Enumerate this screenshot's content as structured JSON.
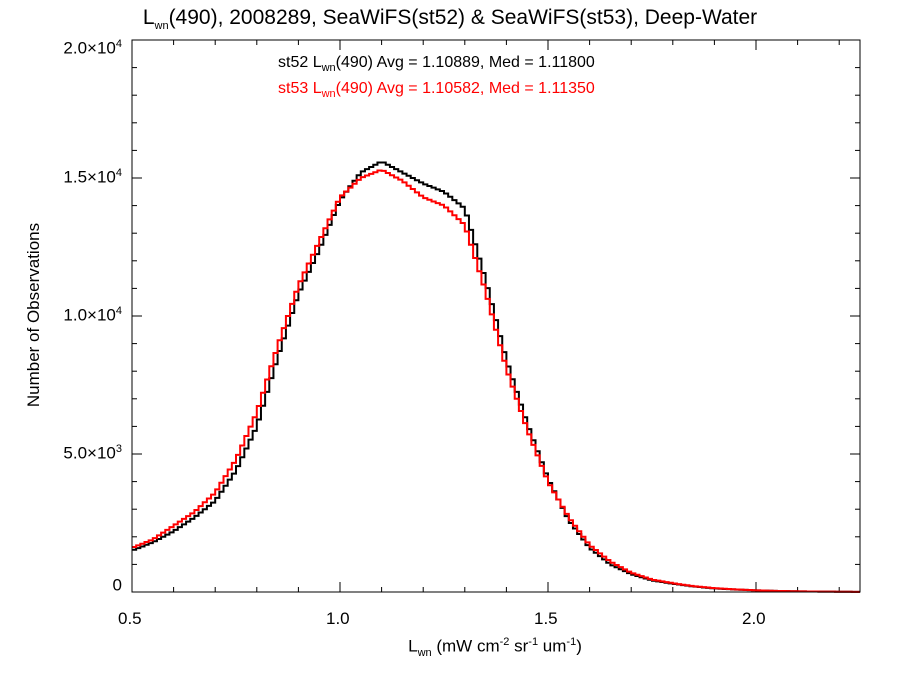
{
  "chart_data": {
    "type": "line",
    "title_parts": {
      "L": "L",
      "wn": "wn",
      "rest": "(490), 2008289, SeaWiFS(st52) & SeaWiFS(st53), Deep-Water"
    },
    "xlabel_parts": {
      "L": "L",
      "wn": "wn",
      "a": " (mW cm",
      "e1": "-2",
      "b": " sr",
      "e2": "-1",
      "c": " um",
      "e3": "-1",
      "d": ")"
    },
    "ylabel": "Number of Observations",
    "xlim": [
      0.5,
      2.25
    ],
    "ylim": [
      0,
      20000
    ],
    "x_ticks": [
      {
        "value": 0.5,
        "label": "0.5"
      },
      {
        "value": 1.0,
        "label": "1.0"
      },
      {
        "value": 1.5,
        "label": "1.5"
      },
      {
        "value": 2.0,
        "label": "2.0"
      }
    ],
    "y_ticks": [
      {
        "value": 0,
        "mant": "0",
        "exp": ""
      },
      {
        "value": 5000,
        "mant": "5.0×10",
        "exp": "3"
      },
      {
        "value": 10000,
        "mant": "1.0×10",
        "exp": "4"
      },
      {
        "value": 15000,
        "mant": "1.5×10",
        "exp": "4"
      },
      {
        "value": 20000,
        "mant": "2.0×10",
        "exp": "4"
      }
    ],
    "annotations": [
      {
        "pre": "st52 L",
        "sub": "wn",
        "post": "(490) Avg = 1.10889, Med = 1.11800",
        "color": "#000000"
      },
      {
        "pre": "st53 L",
        "sub": "wn",
        "post": "(490) Avg = 1.10582, Med = 1.11350",
        "color": "#ff0000"
      }
    ],
    "bin_width": 0.01,
    "series": [
      {
        "color": "#000000",
        "x": [
          0.5,
          0.55,
          0.6,
          0.65,
          0.7,
          0.75,
          0.8,
          0.85,
          0.9,
          0.95,
          1.0,
          1.05,
          1.1,
          1.15,
          1.2,
          1.25,
          1.3,
          1.35,
          1.4,
          1.45,
          1.5,
          1.55,
          1.6,
          1.65,
          1.7,
          1.75,
          1.8,
          1.85,
          1.9,
          1.95,
          2.0,
          2.05,
          2.1,
          2.15,
          2.2,
          2.25
        ],
        "values": [
          1500,
          1800,
          2200,
          2700,
          3300,
          4400,
          6000,
          8500,
          10800,
          12400,
          14200,
          15200,
          15600,
          15200,
          14800,
          14500,
          13900,
          11300,
          8400,
          6100,
          4100,
          2600,
          1600,
          1000,
          650,
          420,
          300,
          200,
          130,
          90,
          60,
          40,
          25,
          15,
          10,
          5
        ]
      },
      {
        "color": "#ff0000",
        "x": [
          0.5,
          0.55,
          0.6,
          0.65,
          0.7,
          0.75,
          0.8,
          0.85,
          0.9,
          0.95,
          1.0,
          1.05,
          1.1,
          1.15,
          1.2,
          1.25,
          1.3,
          1.35,
          1.4,
          1.45,
          1.5,
          1.55,
          1.6,
          1.65,
          1.7,
          1.75,
          1.8,
          1.85,
          1.9,
          1.95,
          2.0,
          2.05,
          2.1,
          2.15,
          2.2,
          2.25
        ],
        "values": [
          1600,
          1900,
          2400,
          2900,
          3600,
          4800,
          6500,
          8900,
          11100,
          12700,
          14300,
          15000,
          15300,
          14900,
          14300,
          14000,
          13300,
          10900,
          8100,
          5900,
          4000,
          2700,
          1700,
          1100,
          700,
          450,
          320,
          210,
          140,
          95,
          60,
          40,
          25,
          15,
          10,
          5
        ]
      }
    ]
  }
}
